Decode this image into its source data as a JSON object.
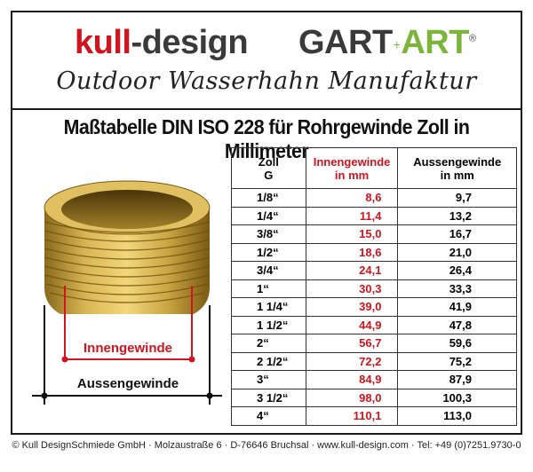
{
  "brand": {
    "kull": "kull",
    "dash": "-",
    "design": "design",
    "gart": "GART",
    "plus": "+",
    "art": "ART",
    "reg": "®",
    "tagline": "Outdoor Wasserhahn Manufaktur"
  },
  "title": "Maßtabelle DIN ISO 228 für Rohrgewinde Zoll in Millimeter",
  "illustration": {
    "inner_label": "Innengewinde",
    "outer_label": "Aussengewinde"
  },
  "table": {
    "headers": {
      "zoll_line1": "Zoll",
      "zoll_line2": "G",
      "inner_line1": "Innengewinde",
      "inner_line2": "in mm",
      "outer_line1": "Aussengewinde",
      "outer_line2": "in mm"
    },
    "rows": [
      {
        "zoll": "1/8“",
        "inner": "8,6",
        "outer": "9,7"
      },
      {
        "zoll": "1/4“",
        "inner": "11,4",
        "outer": "13,2"
      },
      {
        "zoll": "3/8“",
        "inner": "15,0",
        "outer": "16,7"
      },
      {
        "zoll": "1/2“",
        "inner": "18,6",
        "outer": "21,0"
      },
      {
        "zoll": "3/4“",
        "inner": "24,1",
        "outer": "26,4"
      },
      {
        "zoll": "1“",
        "inner": "30,3",
        "outer": "33,3"
      },
      {
        "zoll": "1 1/4“",
        "inner": "39,0",
        "outer": "41,9"
      },
      {
        "zoll": "1 1/2“",
        "inner": "44,9",
        "outer": "47,8"
      },
      {
        "zoll": "2“",
        "inner": "56,7",
        "outer": "59,6"
      },
      {
        "zoll": "2 1/2“",
        "inner": "72,2",
        "outer": "75,2"
      },
      {
        "zoll": "3“",
        "inner": "84,9",
        "outer": "87,9"
      },
      {
        "zoll": "3 1/2“",
        "inner": "98,0",
        "outer": "100,3"
      },
      {
        "zoll": "4“",
        "inner": "110,1",
        "outer": "113,0"
      }
    ]
  },
  "footer": "© Kull DesignSchmiede GmbH · Molzaustraße 6 · D-76646 Bruchsal · www.kull-design.com · Tel: +49 (0)7251.9730-0",
  "colors": {
    "accent_red": "#d2141e",
    "accent_green": "#7cb43c",
    "brass": "#c9a441"
  }
}
